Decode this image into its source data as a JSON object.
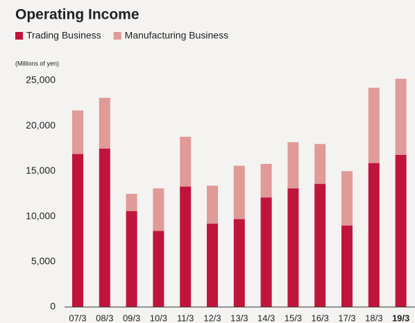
{
  "chart_data": {
    "type": "stacked_bar",
    "title": "Operating Income",
    "y_unit": "(Millions of yen)",
    "categories": [
      "07/3",
      "08/3",
      "09/3",
      "10/3",
      "11/3",
      "12/3",
      "13/3",
      "14/3",
      "15/3",
      "16/3",
      "17/3",
      "18/3",
      "19/3"
    ],
    "series": [
      {
        "name": "Trading Business",
        "color": "#c0143c",
        "values": [
          16900,
          17500,
          10600,
          8400,
          13300,
          9200,
          9700,
          12100,
          13100,
          13600,
          9000,
          15900,
          16800
        ]
      },
      {
        "name": "Manufacturing Business",
        "color": "#e09a98",
        "values": [
          4800,
          5600,
          1900,
          4700,
          5500,
          4200,
          5900,
          3700,
          5100,
          4400,
          6000,
          8300,
          8400
        ]
      }
    ],
    "ylim": [
      0,
      25000
    ],
    "yticks": [
      0,
      {
        "value": 5000,
        "label": "5,000"
      },
      {
        "value": 10000,
        "label": "10,000"
      },
      {
        "value": 15000,
        "label": "15,000"
      },
      {
        "value": 20000,
        "label": "20,000"
      },
      {
        "value": 25000,
        "label": "25,000"
      }
    ],
    "grid": false
  }
}
